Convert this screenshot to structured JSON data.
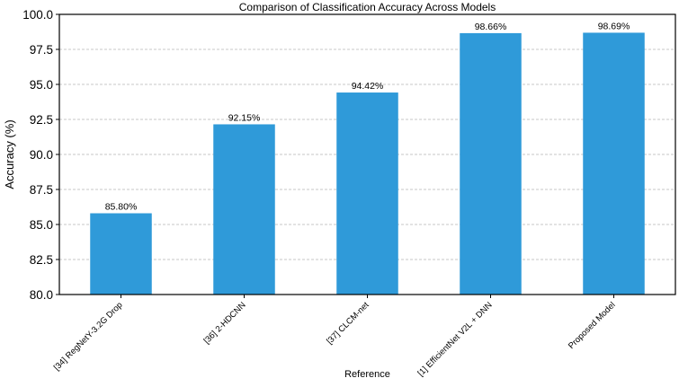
{
  "chart_data": {
    "type": "bar",
    "title": "Comparison of Classification Accuracy Across Models",
    "xlabel": "Reference",
    "ylabel": "Accuracy (%)",
    "categories": [
      "[34] RegNetY-3.2G Drop",
      "[36] 2-HDCNN",
      "[37] CLCM-net",
      "[1] EfficientNet V2L + DNN",
      "Proposed Model"
    ],
    "values": [
      85.8,
      92.15,
      94.42,
      98.66,
      98.69
    ],
    "value_labels": [
      "85.80%",
      "92.15%",
      "94.42%",
      "98.66%",
      "98.69%"
    ],
    "ylim": [
      80.0,
      100.0
    ],
    "yticks": [
      80.0,
      82.5,
      85.0,
      87.5,
      90.0,
      92.5,
      95.0,
      97.5,
      100.0
    ],
    "ytick_labels": [
      "80.0",
      "82.5",
      "85.0",
      "87.5",
      "90.0",
      "92.5",
      "95.0",
      "97.5",
      "100.0"
    ],
    "grid": true,
    "bar_color": "#2f9ad9"
  }
}
